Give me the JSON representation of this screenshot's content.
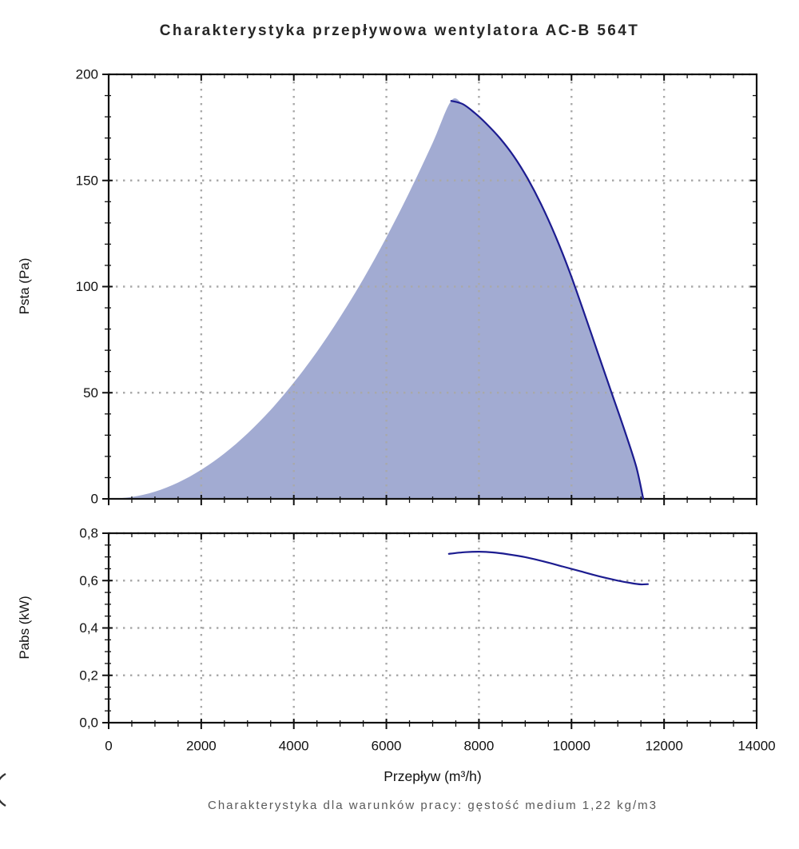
{
  "title": "Charakterystyka przepływowa wentylatora AC-B 564T",
  "caption": "Charakterystyka dla warunków pracy: gęstość medium 1,22 kg/m3",
  "edge_glyph": "(",
  "xaxis": {
    "label": "Przepływ (m³/h)",
    "min": 0,
    "max": 14000,
    "ticks": [
      0,
      2000,
      4000,
      6000,
      8000,
      10000,
      12000,
      14000
    ],
    "ticklabels": [
      "0",
      "2000",
      "4000",
      "6000",
      "8000",
      "10000",
      "12000",
      "14000"
    ],
    "minor_step": 500
  },
  "colors": {
    "area_fill": "#a2abd2",
    "curve_line": "#1c1c90",
    "grid": "#a9a9a9",
    "axis": "#111111",
    "tick_label": "#111111",
    "title_text": "#262626",
    "caption_text": "#595959",
    "background": "#ffffff"
  },
  "chart_data": [
    {
      "type": "area",
      "name": "pressure-plot",
      "ylabel": "Psta (Pa)",
      "ylim": [
        0,
        200
      ],
      "yticks": [
        0,
        50,
        100,
        150,
        200
      ],
      "yticklabels": [
        "0",
        "50",
        "100",
        "150",
        "200"
      ],
      "ytick_minor_step": 10,
      "grid": true,
      "series": [
        {
          "name": "operating-area-left-boundary",
          "style": "fill-boundary",
          "points": [
            [
              0,
              0
            ],
            [
              500,
              0.9
            ],
            [
              1000,
              3.4
            ],
            [
              1500,
              7.7
            ],
            [
              2000,
              13.7
            ],
            [
              2500,
              21.4
            ],
            [
              3000,
              30.8
            ],
            [
              3500,
              41.9
            ],
            [
              4000,
              54.8
            ],
            [
              4500,
              69.3
            ],
            [
              5000,
              85.6
            ],
            [
              5500,
              103.5
            ],
            [
              6000,
              123.2
            ],
            [
              6500,
              144.6
            ],
            [
              7000,
              167.7
            ],
            [
              7400,
              187.5
            ]
          ]
        },
        {
          "name": "fan-pressure-curve",
          "style": "line",
          "points": [
            [
              7400,
              187.5
            ],
            [
              7650,
              186
            ],
            [
              7900,
              182
            ],
            [
              8150,
              177
            ],
            [
              8450,
              170
            ],
            [
              8750,
              161.5
            ],
            [
              9050,
              151
            ],
            [
              9350,
              138.5
            ],
            [
              9650,
              124
            ],
            [
              9950,
              107.5
            ],
            [
              10250,
              89
            ],
            [
              10550,
              70
            ],
            [
              10850,
              51
            ],
            [
              11150,
              32
            ],
            [
              11400,
              15
            ],
            [
              11550,
              0
            ]
          ]
        }
      ]
    },
    {
      "type": "line",
      "name": "power-plot",
      "ylabel": "Pabs (kW)",
      "ylim": [
        0,
        0.8
      ],
      "yticks": [
        0,
        0.2,
        0.4,
        0.6,
        0.8
      ],
      "yticklabels": [
        "0,0",
        "0,2",
        "0,4",
        "0,6",
        "0,8"
      ],
      "ytick_minor_step": 0.05,
      "grid": true,
      "series": [
        {
          "name": "absorbed-power-curve",
          "style": "line",
          "points": [
            [
              7350,
              0.713
            ],
            [
              7700,
              0.72
            ],
            [
              8000,
              0.722
            ],
            [
              8300,
              0.719
            ],
            [
              8600,
              0.712
            ],
            [
              9000,
              0.699
            ],
            [
              9400,
              0.681
            ],
            [
              9800,
              0.66
            ],
            [
              10200,
              0.639
            ],
            [
              10600,
              0.618
            ],
            [
              11000,
              0.6
            ],
            [
              11300,
              0.589
            ],
            [
              11500,
              0.584
            ],
            [
              11650,
              0.585
            ]
          ]
        }
      ]
    }
  ]
}
